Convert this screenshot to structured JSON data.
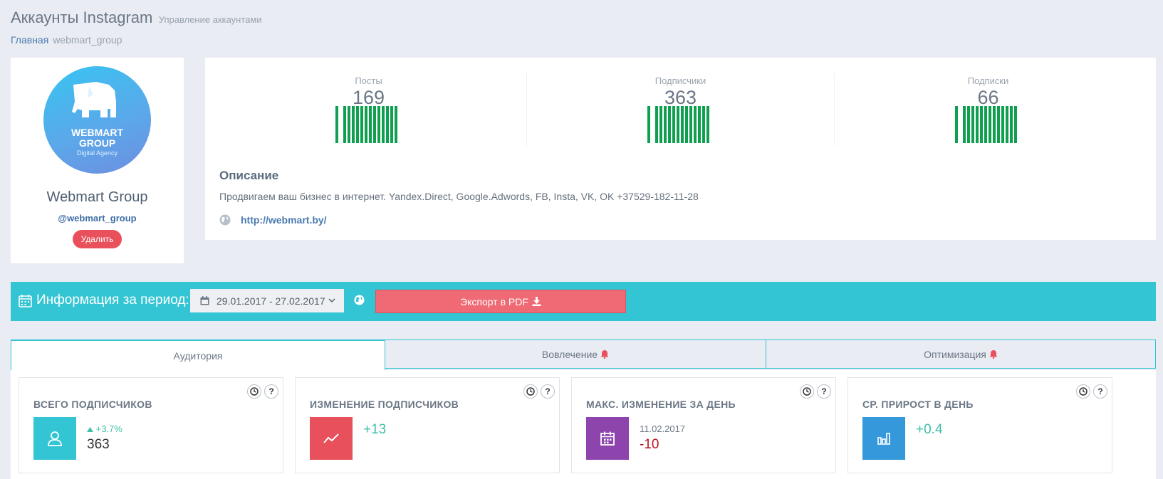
{
  "header": {
    "title": "Аккаунты Instagram",
    "subtitle": "Управление аккаунтами"
  },
  "breadcrumb": {
    "home": "Главная",
    "current": "webmart_group"
  },
  "profile": {
    "avatar_line1": "WEBMART",
    "avatar_line2": "GROUP",
    "avatar_sub": "Digital Agency",
    "name": "Webmart Group",
    "handle": "@webmart_group",
    "delete_label": "Удалить"
  },
  "stats": [
    {
      "label": "Посты",
      "value": "169"
    },
    {
      "label": "Подписчики",
      "value": "363"
    },
    {
      "label": "Подписки",
      "value": "66"
    }
  ],
  "description": {
    "title": "Описание",
    "text": "Продвигаем ваш бизнес в интернет. Yandex.Direct, Google.Adwords, FB, Insta, VK, OK +37529-182-11-28",
    "website": "http://webmart.by/"
  },
  "period": {
    "title": "Информация за период:",
    "date_range": "29.01.2017 - 27.02.2017",
    "export_label": "Экспорт в PDF"
  },
  "tabs": [
    {
      "label": "Аудитория",
      "active": true
    },
    {
      "label": "Вовлечение",
      "alert": true
    },
    {
      "label": "Оптимизация",
      "alert": true
    }
  ],
  "metrics": [
    {
      "title": "ВСЕГО ПОДПИСЧИКОВ",
      "change": "+3.7%",
      "value": "363",
      "color": "#33c5d3",
      "icon": "followers-icon"
    },
    {
      "title": "ИЗМЕНЕНИЕ ПОДПИСЧИКОВ",
      "value": "+13",
      "color": "#e8505b",
      "icon": "trend-icon"
    },
    {
      "title": "МАКС. ИЗМЕНЕНИЕ ЗА ДЕНЬ",
      "date": "11.02.2017",
      "value": "-10",
      "color": "#8e44ad",
      "icon": "calendar-icon"
    },
    {
      "title": "СР. ПРИРОСТ В ДЕНЬ",
      "value": "+0.4",
      "color": "#3498db",
      "icon": "bar-chart-icon"
    }
  ],
  "colors": {
    "accent": "#33c5d3",
    "danger": "#e8505b",
    "positive": "#3fbfa8",
    "negative": "#c0111f",
    "bars": "#0e9f4f"
  }
}
